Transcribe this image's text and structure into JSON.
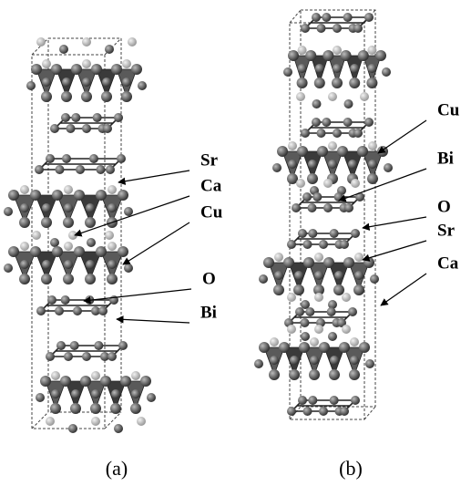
{
  "panels": [
    {
      "caption": "(a)",
      "labels": [
        "Sr",
        "Ca",
        "Cu",
        "O",
        "Bi"
      ]
    },
    {
      "caption": "(b)",
      "labels": [
        "Cu",
        "Bi",
        "O",
        "Sr",
        "Ca"
      ]
    }
  ]
}
